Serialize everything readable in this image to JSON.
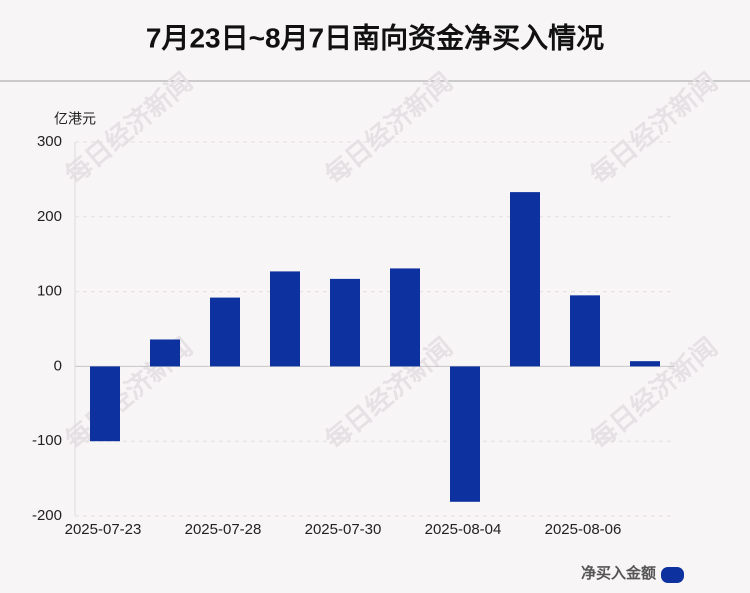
{
  "chart_data": {
    "type": "bar",
    "title": "7月23日~8月7日南向资金净买入情况",
    "y_unit": "亿港元",
    "watermark": "每日经济新闻",
    "categories": [
      "2025-07-23",
      null,
      "2025-07-28",
      null,
      "2025-07-30",
      null,
      "2025-08-04",
      null,
      "2025-08-06",
      null
    ],
    "series": [
      {
        "name": "净买入金额",
        "color": "#0d32a0",
        "values": [
          -100,
          36,
          92,
          127,
          117,
          131,
          -181,
          233,
          95,
          7
        ]
      }
    ],
    "ylim": [
      -200,
      300
    ],
    "yticks": [
      -200,
      -100,
      0,
      100,
      200,
      300
    ],
    "grid": true,
    "legend": "bottom-right"
  }
}
